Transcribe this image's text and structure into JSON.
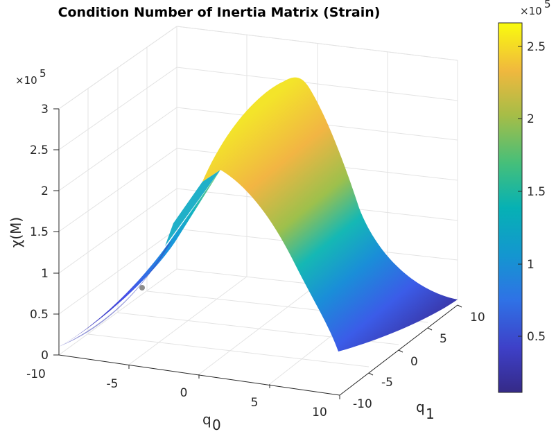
{
  "chart_data": {
    "type": "surface",
    "title": "Condition Number of Inertia Matrix (Strain)",
    "xlabel": "q",
    "xlabel_sub": "0",
    "ylabel": "q",
    "ylabel_sub": "1",
    "zlabel": "χ(M)",
    "x_ticks": [
      "-10",
      "-5",
      "0",
      "5",
      "10"
    ],
    "y_ticks": [
      "-10",
      "-5",
      "0",
      "5",
      "10"
    ],
    "z_ticks": [
      "0",
      "0.5",
      "1",
      "1.5",
      "2",
      "2.5",
      "3"
    ],
    "z_exponent_base": "×10",
    "z_exponent_power": "5",
    "xlim": [
      -10,
      10
    ],
    "ylim": [
      -10,
      10
    ],
    "zlim": [
      0,
      300000
    ],
    "colorbar_ticks": [
      "0.5",
      "1",
      "1.5",
      "2",
      "2.5"
    ],
    "colorbar_exponent_base": "×10",
    "colorbar_exponent_power": "5",
    "clim": [
      10000,
      265000
    ],
    "colormap": "parula",
    "grid": true,
    "surface": {
      "description": "chi(M) ~ f(q0 - q1): peaks about 2.65e5 along the diagonal q0 = q1, falling to about 1e4 at the far corners",
      "peak_value": 265000,
      "min_value": 10000,
      "ridge": "q0 = q1"
    },
    "marker": {
      "q0": -10,
      "q1": 5,
      "z": 80000,
      "color": "#8c8c8c"
    }
  }
}
